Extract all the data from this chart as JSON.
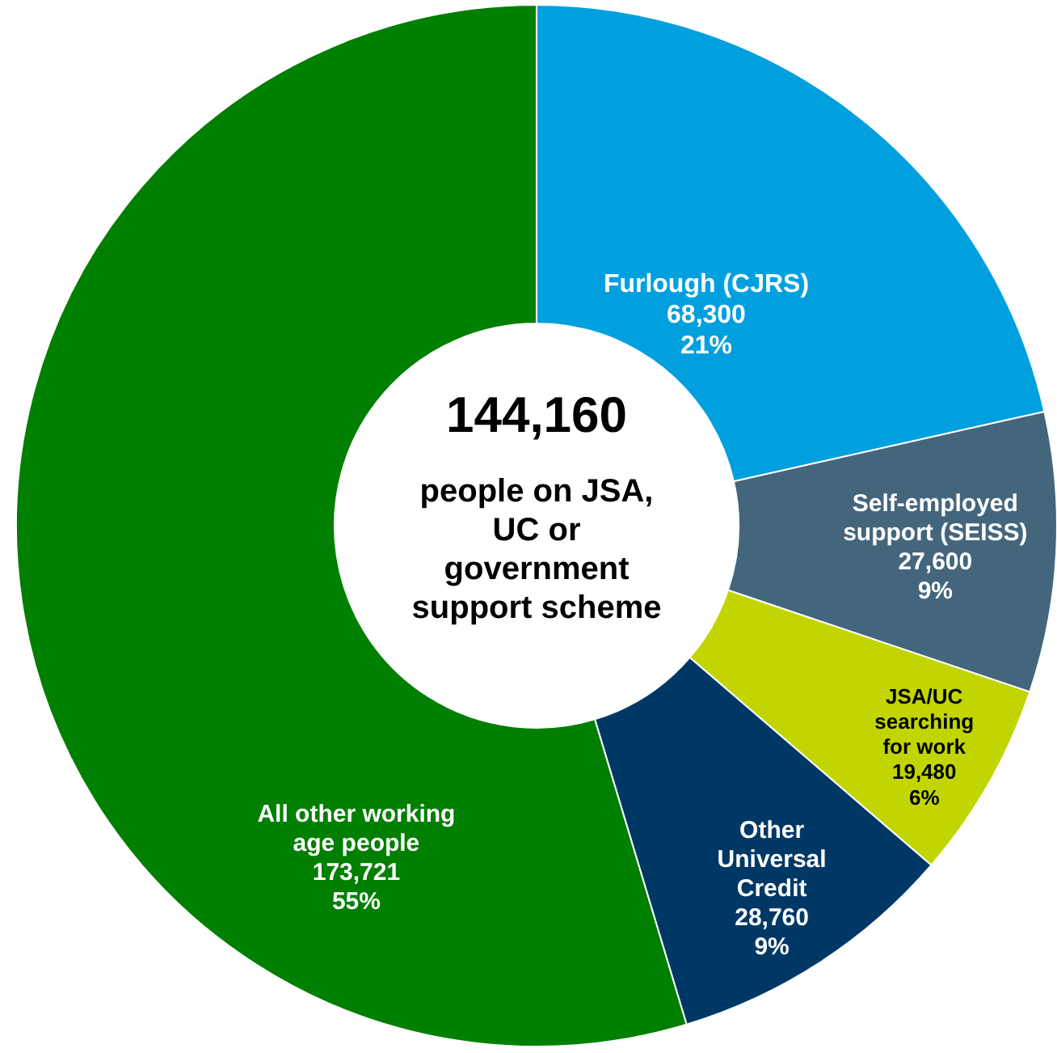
{
  "chart_data": {
    "type": "donut",
    "title": "144,160",
    "subtitle": "people on JSA, UC or government support scheme",
    "categories": [
      "Furlough (CJRS)",
      "Self-employed support (SEISS)",
      "JSA/UC searching for work",
      "Other Universal Credit",
      "All other working age people"
    ],
    "values": [
      68300,
      27600,
      19480,
      28760,
      173721
    ],
    "value_labels": [
      "68,300\n21%",
      "27,600\n9%",
      "19,480\n6%",
      "28,760\n9%",
      "173,721\n55%"
    ],
    "colors": [
      "#00a0df",
      "#44667d",
      "#c2d500",
      "#003865",
      "#007f00"
    ]
  }
}
